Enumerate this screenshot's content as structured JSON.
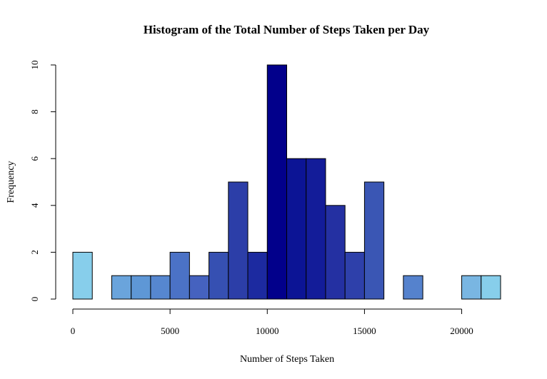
{
  "chart_data": {
    "type": "bar",
    "subtype": "histogram",
    "title": "Histogram of the Total Number of Steps Taken per Day",
    "xlabel": "Number of Steps Taken",
    "ylabel": "Frequency",
    "bin_width": 1000,
    "bins": [
      {
        "x0": 0,
        "x1": 1000,
        "count": 2
      },
      {
        "x0": 1000,
        "x1": 2000,
        "count": 0
      },
      {
        "x0": 2000,
        "x1": 3000,
        "count": 1
      },
      {
        "x0": 3000,
        "x1": 4000,
        "count": 1
      },
      {
        "x0": 4000,
        "x1": 5000,
        "count": 1
      },
      {
        "x0": 5000,
        "x1": 6000,
        "count": 2
      },
      {
        "x0": 6000,
        "x1": 7000,
        "count": 1
      },
      {
        "x0": 7000,
        "x1": 8000,
        "count": 2
      },
      {
        "x0": 8000,
        "x1": 9000,
        "count": 5
      },
      {
        "x0": 9000,
        "x1": 10000,
        "count": 2
      },
      {
        "x0": 10000,
        "x1": 11000,
        "count": 10
      },
      {
        "x0": 11000,
        "x1": 12000,
        "count": 6
      },
      {
        "x0": 12000,
        "x1": 13000,
        "count": 6
      },
      {
        "x0": 13000,
        "x1": 14000,
        "count": 4
      },
      {
        "x0": 14000,
        "x1": 15000,
        "count": 2
      },
      {
        "x0": 15000,
        "x1": 16000,
        "count": 5
      },
      {
        "x0": 16000,
        "x1": 17000,
        "count": 0
      },
      {
        "x0": 17000,
        "x1": 18000,
        "count": 1
      },
      {
        "x0": 18000,
        "x1": 19000,
        "count": 0
      },
      {
        "x0": 19000,
        "x1": 20000,
        "count": 0
      },
      {
        "x0": 20000,
        "x1": 21000,
        "count": 1
      },
      {
        "x0": 21000,
        "x1": 22000,
        "count": 1
      }
    ],
    "bar_colors": [
      "#87ceeb",
      "#87ceeb",
      "#6aa4dc",
      "#5e97d6",
      "#5687d0",
      "#4b72c6",
      "#4562bf",
      "#3650b2",
      "#2c3ea8",
      "#1c2aa0",
      "#02008b",
      "#0c1495",
      "#131c99",
      "#2430a2",
      "#2e40aa",
      "#3a56b4",
      "#87ceeb",
      "#5582cd",
      "#87ceeb",
      "#87ceeb",
      "#79b6e2",
      "#87ceeb"
    ],
    "xlim": [
      0,
      22000
    ],
    "ylim": [
      0,
      10
    ],
    "x_ticks": [
      0,
      5000,
      10000,
      15000,
      20000
    ],
    "x_tick_labels": [
      "0",
      "5000",
      "10000",
      "15000",
      "20000"
    ],
    "y_ticks": [
      0,
      2,
      4,
      6,
      8,
      10
    ],
    "y_tick_labels": [
      "0",
      "2",
      "4",
      "6",
      "8",
      "10"
    ],
    "grid": false,
    "legend": "none"
  }
}
